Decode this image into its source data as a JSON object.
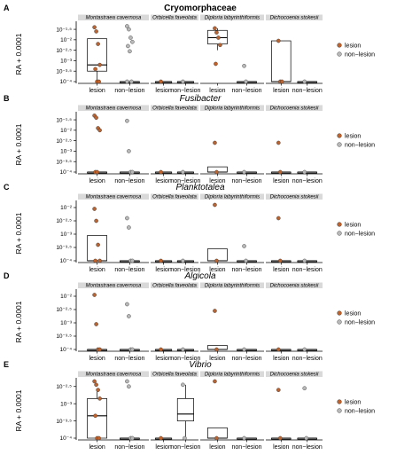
{
  "y_axis_label": "RA + 0.0001",
  "legend": [
    {
      "label": "lesion",
      "color": "#c0622b"
    },
    {
      "label": "non−lesion",
      "color": "#b8b8b8"
    }
  ],
  "species": [
    "Montastraea cavernosa",
    "Orbicella faveolata",
    "Diploria labyrinthiformis",
    "Dichocoenia stokesii"
  ],
  "x_categories": [
    "lesion",
    "non−lesion"
  ],
  "colors": {
    "lesion": "#c0622b",
    "non_lesion": "#b8b8b8",
    "strip": "#d9d9d9",
    "box_stroke": "#000000"
  },
  "chart_data": [
    {
      "panel": "A",
      "title": "Cryomorphaceae",
      "title_style": "bold",
      "type": "box",
      "y_scale": "log10",
      "ylim": [
        -4,
        -1.2
      ],
      "y_ticks": [
        -4,
        -3.5,
        -3,
        -2.5,
        -2,
        -1.5
      ],
      "y_tick_labels": [
        "10⁻⁴",
        "10⁻³·⁵",
        "10⁻³",
        "10⁻²·⁵",
        "10⁻²",
        "10⁻¹·⁵"
      ],
      "groups": [
        {
          "species": "Montastraea cavernosa",
          "condition": "lesion",
          "box": [
            -4,
            -3.5,
            -3.2,
            -1.95,
            -1.95
          ],
          "points": [
            -1.4,
            -1.6,
            -2.2,
            -3.2,
            -3.4,
            -4,
            -4
          ]
        },
        {
          "species": "Montastraea cavernosa",
          "condition": "non−lesion",
          "box": [
            -4,
            -4,
            -4,
            -4,
            -4
          ],
          "points": [
            -1.35,
            -1.5,
            -1.9,
            -2.1,
            -2.3,
            -2.55,
            -4,
            -4
          ]
        },
        {
          "species": "Orbicella faveolata",
          "condition": "lesion",
          "box": [
            -4,
            -4,
            -4,
            -4,
            -4
          ],
          "points": [
            -4
          ]
        },
        {
          "species": "Orbicella faveolata",
          "condition": "non−lesion",
          "box": [
            -4,
            -4,
            -4,
            -4,
            -4
          ],
          "points": [
            -4
          ]
        },
        {
          "species": "Diploria labyrinthiformis",
          "condition": "lesion",
          "box": [
            -2.5,
            -2.2,
            -1.9,
            -1.55,
            -1.45
          ],
          "points": [
            -1.45,
            -1.65,
            -1.9,
            -2.25,
            -3.15
          ]
        },
        {
          "species": "Diploria labyrinthiformis",
          "condition": "non−lesion",
          "box": [
            -4,
            -4,
            -4,
            -4,
            -4
          ],
          "points": [
            -3.25,
            -4
          ]
        },
        {
          "species": "Dichocoenia stokesii",
          "condition": "lesion",
          "box": [
            -4,
            -4,
            -4,
            -2.05,
            -2.05
          ],
          "points": [
            -2.05,
            -4,
            -4
          ]
        },
        {
          "species": "Dichocoenia stokesii",
          "condition": "non−lesion",
          "box": [
            -4,
            -4,
            -4,
            -4,
            -4
          ],
          "points": [
            -4
          ]
        }
      ]
    },
    {
      "panel": "B",
      "title": "Fusibacter",
      "title_style": "italic",
      "type": "box",
      "y_scale": "log10",
      "ylim": [
        -4,
        -1.2
      ],
      "y_ticks": [
        -4,
        -3.5,
        -3,
        -2.5,
        -2,
        -1.5
      ],
      "y_tick_labels": [
        "10⁻⁴",
        "10⁻³·⁵",
        "10⁻³",
        "10⁻²·⁵",
        "10⁻²",
        "10⁻¹·⁵"
      ],
      "groups": [
        {
          "species": "Montastraea cavernosa",
          "condition": "lesion",
          "box": [
            -4,
            -4,
            -4,
            -4,
            -4
          ],
          "points": [
            -1.3,
            -1.4,
            -1.9,
            -2.0,
            -4,
            -4
          ]
        },
        {
          "species": "Montastraea cavernosa",
          "condition": "non−lesion",
          "box": [
            -4,
            -4,
            -4,
            -4,
            -4
          ],
          "points": [
            -1.55,
            -3.0,
            -4,
            -4
          ]
        },
        {
          "species": "Orbicella faveolata",
          "condition": "lesion",
          "box": [
            -4,
            -4,
            -4,
            -4,
            -4
          ],
          "points": [
            -4
          ]
        },
        {
          "species": "Orbicella faveolata",
          "condition": "non−lesion",
          "box": [
            -4,
            -4,
            -4,
            -4,
            -4
          ],
          "points": [
            -4
          ]
        },
        {
          "species": "Diploria labyrinthiformis",
          "condition": "lesion",
          "box": [
            -4,
            -4,
            -4,
            -3.75,
            -3.75
          ],
          "points": [
            -2.6,
            -4
          ]
        },
        {
          "species": "Diploria labyrinthiformis",
          "condition": "non−lesion",
          "box": [
            -4,
            -4,
            -4,
            -4,
            -4
          ],
          "points": [
            -4
          ]
        },
        {
          "species": "Dichocoenia stokesii",
          "condition": "lesion",
          "box": [
            -4,
            -4,
            -4,
            -4,
            -4
          ],
          "points": [
            -2.6,
            -4
          ]
        },
        {
          "species": "Dichocoenia stokesii",
          "condition": "non−lesion",
          "box": [
            -4,
            -4,
            -4,
            -4,
            -4
          ],
          "points": [
            -4
          ]
        }
      ]
    },
    {
      "panel": "C",
      "title": "Planktotalea",
      "title_style": "italic",
      "type": "box",
      "y_scale": "log10",
      "ylim": [
        -4,
        -1.8
      ],
      "y_ticks": [
        -4,
        -3.5,
        -3,
        -2.5,
        -2
      ],
      "y_tick_labels": [
        "10⁻⁴",
        "10⁻³·⁵",
        "10⁻³",
        "10⁻²·⁵",
        "10⁻²"
      ],
      "groups": [
        {
          "species": "Montastraea cavernosa",
          "condition": "lesion",
          "box": [
            -4,
            -4,
            -4,
            -3.05,
            -3.05
          ],
          "points": [
            -2.05,
            -2.5,
            -3.4,
            -4,
            -4
          ]
        },
        {
          "species": "Montastraea cavernosa",
          "condition": "non−lesion",
          "box": [
            -4,
            -4,
            -4,
            -4,
            -4
          ],
          "points": [
            -2.4,
            -2.75,
            -4,
            -4
          ]
        },
        {
          "species": "Orbicella faveolata",
          "condition": "lesion",
          "box": [
            -4,
            -4,
            -4,
            -4,
            -4
          ],
          "points": [
            -4
          ]
        },
        {
          "species": "Orbicella faveolata",
          "condition": "non−lesion",
          "box": [
            -4,
            -4,
            -4,
            -4,
            -4
          ],
          "points": [
            -4
          ]
        },
        {
          "species": "Diploria labyrinthiformis",
          "condition": "lesion",
          "box": [
            -4,
            -4,
            -4,
            -3.55,
            -3.55
          ],
          "points": [
            -1.9,
            -4
          ]
        },
        {
          "species": "Diploria labyrinthiformis",
          "condition": "non−lesion",
          "box": [
            -4,
            -4,
            -4,
            -4,
            -4
          ],
          "points": [
            -3.45,
            -4
          ]
        },
        {
          "species": "Dichocoenia stokesii",
          "condition": "lesion",
          "box": [
            -4,
            -4,
            -4,
            -4,
            -4
          ],
          "points": [
            -2.4,
            -4
          ]
        },
        {
          "species": "Dichocoenia stokesii",
          "condition": "non−lesion",
          "box": [
            -4,
            -4,
            -4,
            -4,
            -4
          ],
          "points": [
            -4
          ]
        }
      ]
    },
    {
      "panel": "D",
      "title": "Algicola",
      "title_style": "italic",
      "type": "box",
      "y_scale": "log10",
      "ylim": [
        -4,
        -1.8
      ],
      "y_ticks": [
        -4,
        -3.5,
        -3,
        -2.5,
        -2
      ],
      "y_tick_labels": [
        "10⁻⁴",
        "10⁻³·⁵",
        "10⁻³",
        "10⁻²·⁵",
        "10⁻²"
      ],
      "groups": [
        {
          "species": "Montastraea cavernosa",
          "condition": "lesion",
          "box": [
            -4,
            -4,
            -4,
            -4,
            -4
          ],
          "points": [
            -1.95,
            -3.05,
            -4,
            -4
          ]
        },
        {
          "species": "Montastraea cavernosa",
          "condition": "non−lesion",
          "box": [
            -4,
            -4,
            -4,
            -4,
            -4
          ],
          "points": [
            -2.3,
            -2.75,
            -4,
            -4
          ]
        },
        {
          "species": "Orbicella faveolata",
          "condition": "lesion",
          "box": [
            -4,
            -4,
            -4,
            -4,
            -4
          ],
          "points": [
            -4
          ]
        },
        {
          "species": "Orbicella faveolata",
          "condition": "non−lesion",
          "box": [
            -4,
            -4,
            -4,
            -4,
            -4
          ],
          "points": [
            -4
          ]
        },
        {
          "species": "Diploria labyrinthiformis",
          "condition": "lesion",
          "box": [
            -4,
            -4,
            -4,
            -3.85,
            -3.85
          ],
          "points": [
            -2.55,
            -4
          ]
        },
        {
          "species": "Diploria labyrinthiformis",
          "condition": "non−lesion",
          "box": [
            -4,
            -4,
            -4,
            -4,
            -4
          ],
          "points": [
            -4
          ]
        },
        {
          "species": "Dichocoenia stokesii",
          "condition": "lesion",
          "box": [
            -4,
            -4,
            -4,
            -4,
            -4
          ],
          "points": [
            -4
          ]
        },
        {
          "species": "Dichocoenia stokesii",
          "condition": "non−lesion",
          "box": [
            -4,
            -4,
            -4,
            -4,
            -4
          ],
          "points": [
            -4
          ]
        }
      ]
    },
    {
      "panel": "E",
      "title": "Vibrio",
      "title_style": "italic",
      "type": "box",
      "y_scale": "log10",
      "ylim": [
        -4,
        -2.3
      ],
      "y_ticks": [
        -4,
        -3.5,
        -3,
        -2.5
      ],
      "y_tick_labels": [
        "10⁻⁴",
        "10⁻³·⁵",
        "10⁻³",
        "10⁻²·⁵"
      ],
      "groups": [
        {
          "species": "Montastraea cavernosa",
          "condition": "lesion",
          "box": [
            -4,
            -4,
            -3.35,
            -2.85,
            -2.6
          ],
          "points": [
            -2.35,
            -2.45,
            -2.6,
            -2.85,
            -3.35,
            -4,
            -4
          ]
        },
        {
          "species": "Montastraea cavernosa",
          "condition": "non−lesion",
          "box": [
            -4,
            -4,
            -4,
            -4,
            -4
          ],
          "points": [
            -2.35,
            -2.5,
            -4,
            -4
          ]
        },
        {
          "species": "Orbicella faveolata",
          "condition": "lesion",
          "box": [
            -4,
            -4,
            -4,
            -4,
            -4
          ],
          "points": [
            -4
          ]
        },
        {
          "species": "Orbicella faveolata",
          "condition": "non−lesion",
          "box": [
            -4,
            -3.5,
            -3.3,
            -2.85,
            -2.45
          ],
          "points": [
            -2.45,
            -4
          ]
        },
        {
          "species": "Diploria labyrinthiformis",
          "condition": "lesion",
          "box": [
            -4,
            -4,
            -4,
            -3.7,
            -3.7
          ],
          "points": [
            -2.35,
            -4
          ]
        },
        {
          "species": "Diploria labyrinthiformis",
          "condition": "non−lesion",
          "box": [
            -4,
            -4,
            -4,
            -4,
            -4
          ],
          "points": [
            -4
          ]
        },
        {
          "species": "Dichocoenia stokesii",
          "condition": "lesion",
          "box": [
            -4,
            -4,
            -4,
            -4,
            -4
          ],
          "points": [
            -2.6,
            -4
          ]
        },
        {
          "species": "Dichocoenia stokesii",
          "condition": "non−lesion",
          "box": [
            -4,
            -4,
            -4,
            -4,
            -4
          ],
          "points": [
            -2.55,
            -4
          ]
        }
      ]
    }
  ]
}
